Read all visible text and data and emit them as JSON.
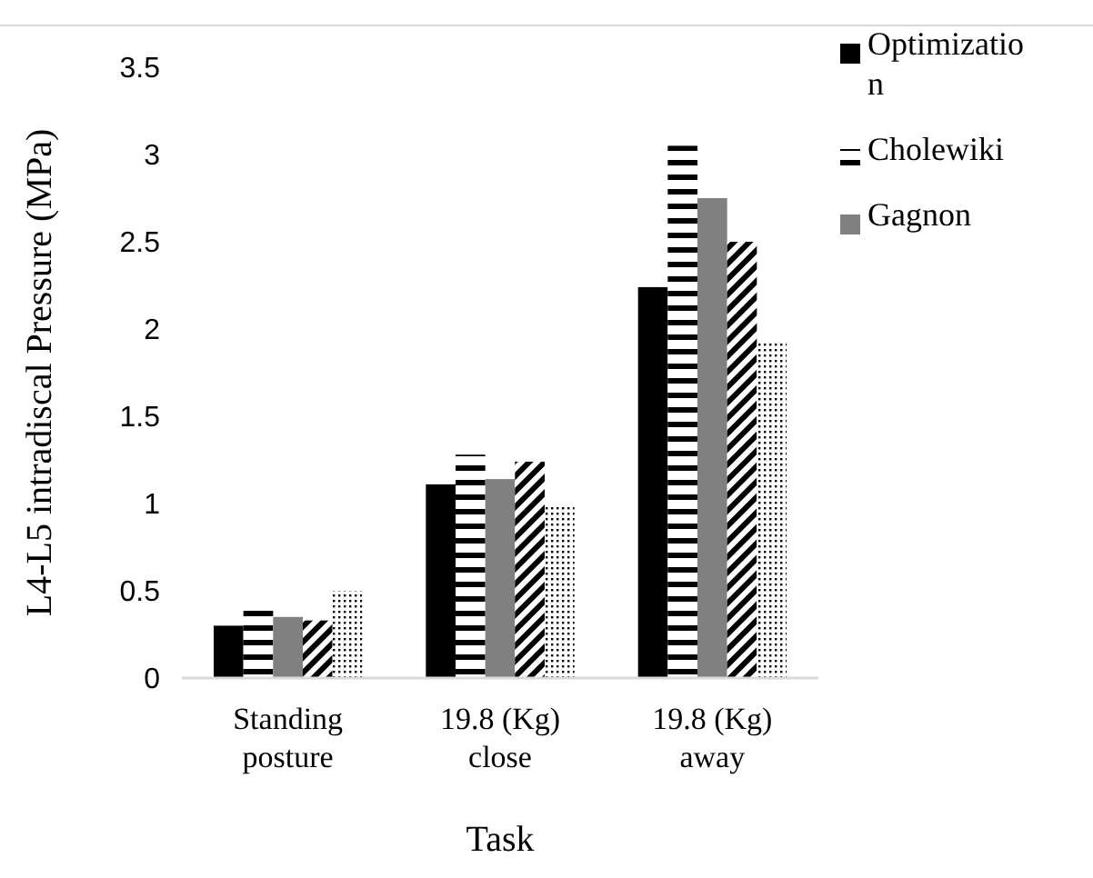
{
  "chart_data": {
    "type": "bar",
    "xlabel": "Task",
    "ylabel": "L4-L5 intradiscal Pressure (MPa)",
    "categories": [
      "Standing posture",
      "19.8 (Kg) close",
      "19.8 (Kg) away"
    ],
    "series": [
      {
        "name": "Optimization",
        "color": "#000000",
        "values": [
          0.3,
          1.11,
          2.24
        ]
      },
      {
        "name": "Cholewiki",
        "color": "#000000",
        "values": [
          0.4,
          1.28,
          3.05
        ]
      },
      {
        "name": "Gagnon",
        "color": "#808080",
        "values": [
          0.35,
          1.14,
          2.75
        ]
      },
      {
        "color": "#000000",
        "values": [
          0.33,
          1.24,
          2.5
        ]
      },
      {
        "color": "#000000",
        "values": [
          0.5,
          0.99,
          1.92
        ]
      }
    ],
    "ylim": [
      0,
      3.5
    ],
    "yticks": [
      0,
      0.5,
      1,
      1.5,
      2,
      2.5,
      3,
      3.5
    ],
    "grid": false,
    "legend": "top right"
  }
}
